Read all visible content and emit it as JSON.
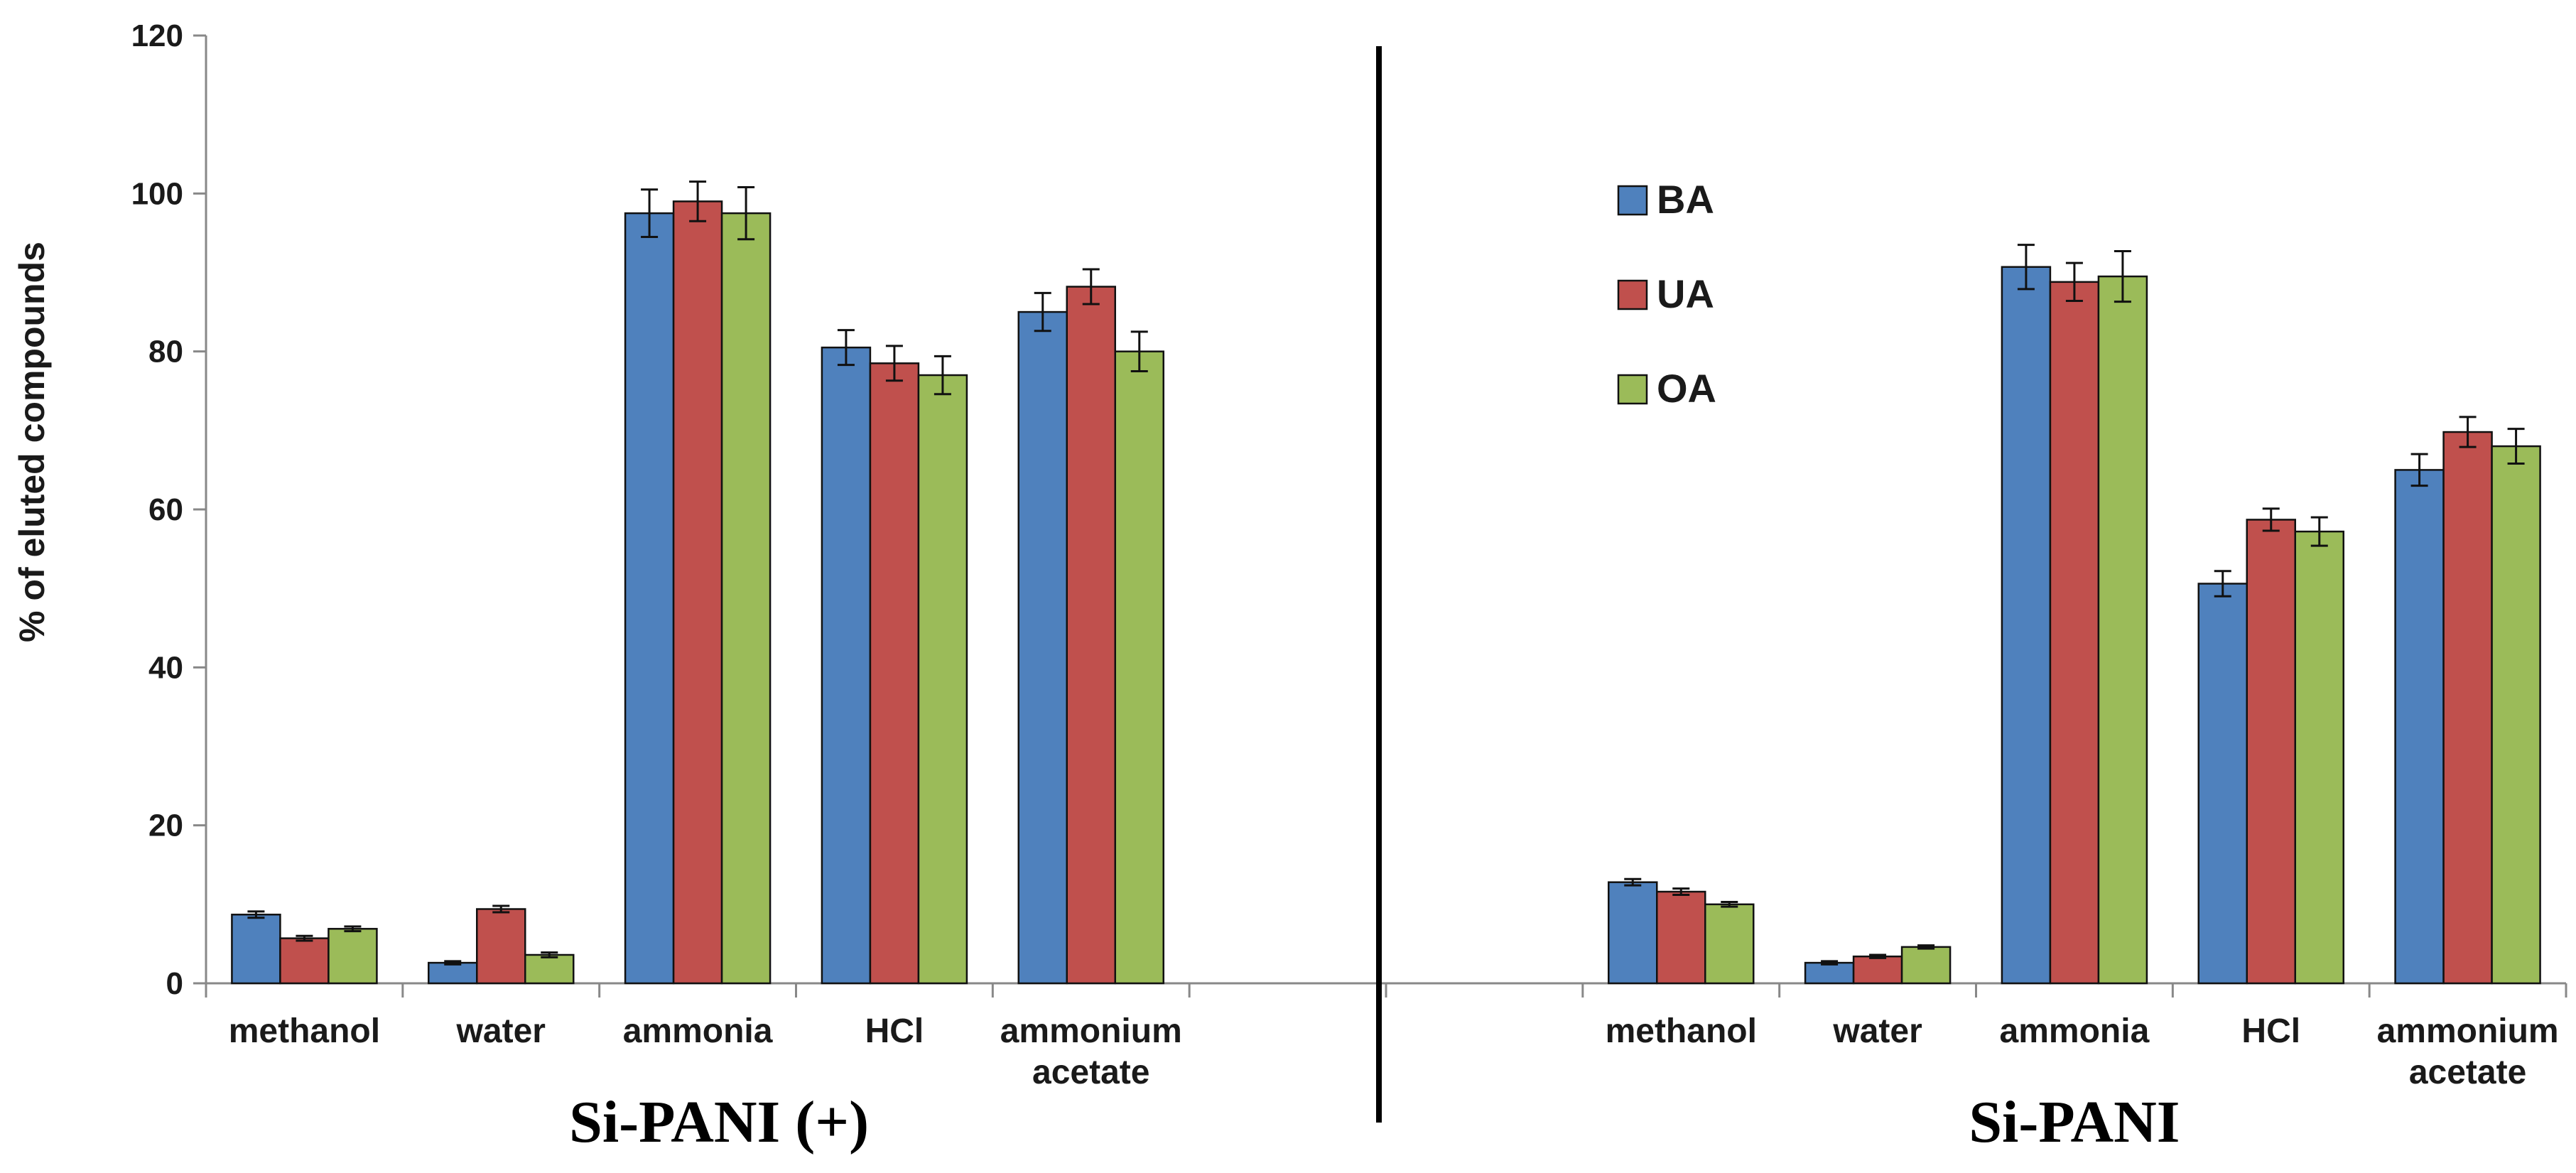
{
  "chart_data": {
    "type": "bar",
    "ylabel": "% of eluted compounds",
    "ylim": [
      0,
      120
    ],
    "yticks": [
      "0",
      "20",
      "40",
      "60",
      "80",
      "100",
      "120"
    ],
    "grid": false,
    "legend_position": "upper-middle of right panel",
    "legend": [
      "BA",
      "UA",
      "OA"
    ],
    "colors": {
      "BA": "#4F81BD",
      "UA": "#C0504D",
      "OA": "#9BBB59"
    },
    "groups": [
      {
        "label": "Si-PANI  (+)",
        "categories": [
          "methanol",
          "water",
          "ammonia",
          "HCl",
          "ammonium acetate"
        ],
        "series": [
          {
            "name": "BA",
            "values": [
              8.7,
              2.6,
              97.5,
              80.5,
              85.0
            ],
            "errors": [
              0.4,
              0.2,
              3.0,
              2.2,
              2.4
            ]
          },
          {
            "name": "UA",
            "values": [
              5.7,
              9.4,
              99.0,
              78.5,
              88.2
            ],
            "errors": [
              0.3,
              0.4,
              2.5,
              2.2,
              2.2
            ]
          },
          {
            "name": "OA",
            "values": [
              6.9,
              3.6,
              97.5,
              77.0,
              80.0
            ],
            "errors": [
              0.3,
              0.3,
              3.3,
              2.4,
              2.5
            ]
          }
        ]
      },
      {
        "label": "Si-PANI",
        "categories": [
          "methanol",
          "water",
          "ammonia",
          "HCl",
          "ammonium acetate"
        ],
        "series": [
          {
            "name": "BA",
            "values": [
              12.8,
              2.6,
              90.7,
              50.6,
              65.0
            ],
            "errors": [
              0.4,
              0.2,
              2.8,
              1.6,
              2.0
            ]
          },
          {
            "name": "UA",
            "values": [
              11.6,
              3.4,
              88.8,
              58.7,
              69.8
            ],
            "errors": [
              0.4,
              0.2,
              2.4,
              1.4,
              1.9
            ]
          },
          {
            "name": "OA",
            "values": [
              10.0,
              4.6,
              89.5,
              57.2,
              68.0
            ],
            "errors": [
              0.3,
              0.2,
              3.2,
              1.8,
              2.2
            ]
          }
        ]
      }
    ]
  }
}
